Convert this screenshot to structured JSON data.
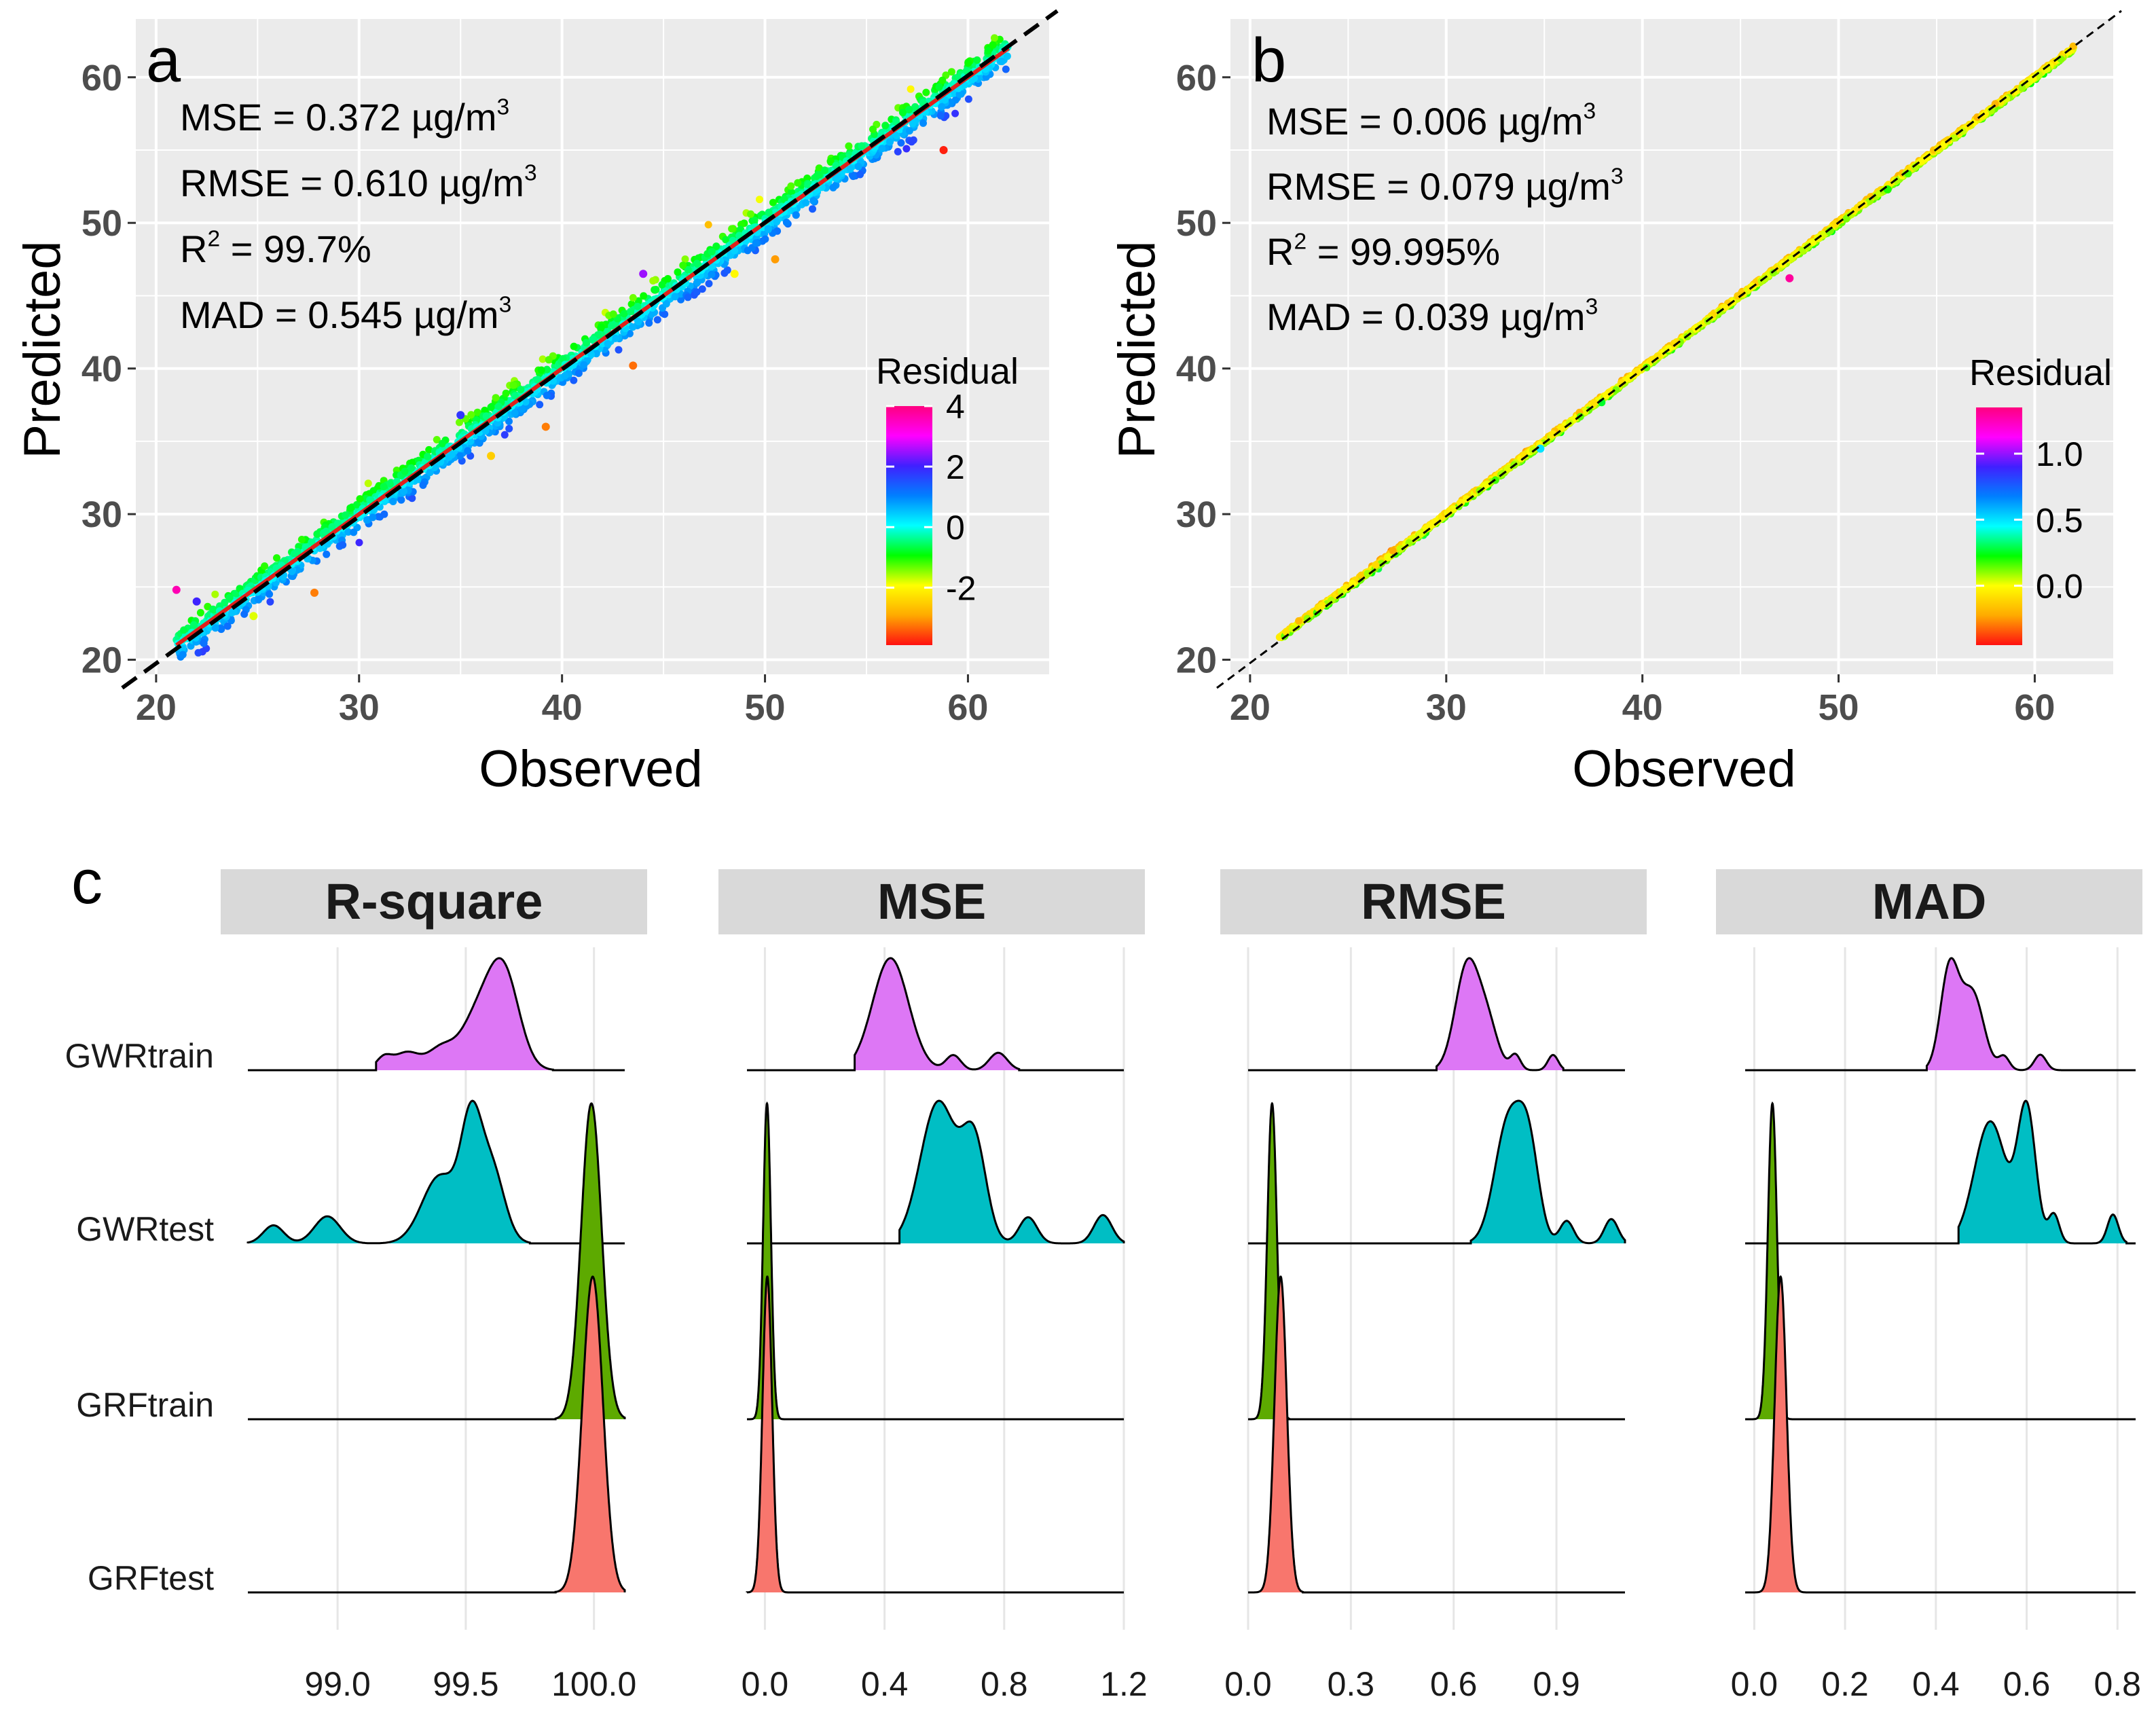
{
  "chart_data": [
    {
      "panel": "a",
      "type": "scatter",
      "xlabel": "Observed",
      "ylabel": "Predicted",
      "xlim": [
        19,
        64
      ],
      "ylim": [
        19,
        64
      ],
      "x_ticks": [
        20,
        30,
        40,
        50,
        60
      ],
      "y_ticks": [
        20,
        30,
        40,
        50,
        60
      ],
      "grid": true,
      "stats": [
        {
          "name": "MSE",
          "text": "MSE = 0.372 µg/m",
          "sup": "3"
        },
        {
          "name": "RMSE",
          "text": "RMSE = 0.610 µg/m",
          "sup": "3"
        },
        {
          "name": "R2",
          "pre": "R",
          "presup": "2",
          "text": " = 99.7%",
          "sup": ""
        },
        {
          "name": "MAD",
          "text": "MAD = 0.545 µg/m",
          "sup": "3"
        }
      ],
      "reference_line": {
        "style": "dashed",
        "color": "#000000",
        "from": [
          19,
          19
        ],
        "to": [
          64,
          64
        ]
      },
      "fit_line": {
        "color": "#e0201a",
        "from": [
          21,
          21
        ],
        "to": [
          62,
          62
        ]
      },
      "point_range": [
        21,
        62
      ],
      "band_residual_sd": 0.6,
      "outliers": [
        {
          "x": 21.0,
          "y": 24.8,
          "r": 3.6
        },
        {
          "x": 27.8,
          "y": 24.6,
          "r": -3.2
        },
        {
          "x": 36.5,
          "y": 34.0,
          "r": -2.5
        },
        {
          "x": 39.2,
          "y": 36.0,
          "r": -3.2
        },
        {
          "x": 43.5,
          "y": 40.2,
          "r": -3.3
        },
        {
          "x": 48.5,
          "y": 46.5,
          "r": -2.0
        },
        {
          "x": 50.5,
          "y": 47.5,
          "r": -3.0
        },
        {
          "x": 58.8,
          "y": 55.0,
          "r": -3.8
        },
        {
          "x": 24.8,
          "y": 23.0,
          "r": -1.8
        },
        {
          "x": 35.0,
          "y": 36.8,
          "r": 1.8
        },
        {
          "x": 44.0,
          "y": 46.5,
          "r": 2.5
        },
        {
          "x": 22.0,
          "y": 24.0,
          "r": 2.0
        }
      ],
      "legend": {
        "title": "Residual",
        "labels": [
          "4",
          "2",
          "0",
          "-2"
        ],
        "label_values": [
          4,
          2,
          0,
          -2
        ],
        "range": [
          -3.9,
          4.0
        ],
        "colors": [
          "#ff1010",
          "#ffaa00",
          "#ffff00",
          "#00ff00",
          "#00ffff",
          "#0080ff",
          "#4020ff",
          "#ff00ff",
          "#ff0080"
        ],
        "placement": "right"
      }
    },
    {
      "panel": "b",
      "type": "scatter",
      "xlabel": "Observed",
      "ylabel": "Predicted",
      "xlim": [
        19,
        64
      ],
      "ylim": [
        19,
        64
      ],
      "x_ticks": [
        20,
        30,
        40,
        50,
        60
      ],
      "y_ticks": [
        20,
        30,
        40,
        50,
        60
      ],
      "grid": true,
      "stats": [
        {
          "name": "MSE",
          "text": "MSE = 0.006 µg/m",
          "sup": "3"
        },
        {
          "name": "RMSE",
          "text": "RMSE = 0.079 µg/m",
          "sup": "3"
        },
        {
          "name": "R2",
          "pre": "R",
          "presup": "2",
          "text": " = 99.995%",
          "sup": ""
        },
        {
          "name": "MAD",
          "text": "MAD = 0.039 µg/m",
          "sup": "3"
        }
      ],
      "reference_line": {
        "style": "dashed",
        "color": "#000000",
        "from": [
          19,
          19
        ],
        "to": [
          64,
          64
        ]
      },
      "point_range": [
        21.5,
        62
      ],
      "band_residual_sd": 0.08,
      "outliers": [
        {
          "x": 47.5,
          "y": 46.2,
          "r": 1.3
        },
        {
          "x": 34.8,
          "y": 34.5,
          "r": 0.5
        },
        {
          "x": 52.5,
          "y": 52.3,
          "r": 0.2
        }
      ],
      "legend": {
        "title": "Residual",
        "labels": [
          "1.0",
          "0.5",
          "0.0"
        ],
        "label_values": [
          1.0,
          0.5,
          0.0
        ],
        "range": [
          -0.45,
          1.35
        ],
        "colors": [
          "#ff1010",
          "#ffaa00",
          "#ffff00",
          "#00ff00",
          "#00ffff",
          "#0080ff",
          "#4020ff",
          "#ff00ff",
          "#ff0080"
        ],
        "placement": "right"
      }
    },
    {
      "panel": "c",
      "type": "ridgeline_density",
      "categories": [
        "GWRtrain",
        "GWRtest",
        "GRFtrain",
        "GRFtest"
      ],
      "category_colors": {
        "GWRtrain": "#dd77f5",
        "GWRtest": "#00bec4",
        "GRFtrain": "#5daa00",
        "GRFtest": "#f8766d"
      },
      "facets": [
        {
          "title": "R-square",
          "xlim": [
            98.65,
            100.12
          ],
          "ticks": [
            99.0,
            99.5,
            100.0
          ],
          "tick_labels": [
            "99.0",
            "99.5",
            "100.0"
          ],
          "series": {
            "GWRtrain": {
              "range": [
                99.15,
                99.84
              ],
              "peaks": [
                [
                  99.18,
                  0.03,
                  0.12
                ],
                [
                  99.27,
                  0.05,
                  0.18
                ],
                [
                  99.4,
                  0.05,
                  0.2
                ],
                [
                  99.55,
                  0.07,
                  0.55
                ],
                [
                  99.65,
                  0.06,
                  0.9
                ]
              ]
            },
            "GWRtest": {
              "range": [
                98.65,
                99.75
              ],
              "peaks": [
                [
                  98.75,
                  0.04,
                  0.12
                ],
                [
                  98.96,
                  0.05,
                  0.18
                ],
                [
                  99.4,
                  0.07,
                  0.45
                ],
                [
                  99.52,
                  0.04,
                  0.7
                ],
                [
                  99.6,
                  0.05,
                  0.5
                ]
              ]
            },
            "GRFtrain": {
              "range": [
                99.85,
                100.12
              ],
              "peaks": [
                [
                  99.99,
                  0.04,
                  1.0
                ]
              ]
            },
            "GRFtest": {
              "range": [
                99.85,
                100.12
              ],
              "peaks": [
                [
                  99.995,
                  0.04,
                  1.0
                ]
              ]
            }
          }
        },
        {
          "title": "MSE",
          "xlim": [
            -0.06,
            1.2
          ],
          "ticks": [
            0.0,
            0.4,
            0.8,
            1.2
          ],
          "tick_labels": [
            "0.0",
            "0.4",
            "0.8",
            "1.2"
          ],
          "series": {
            "GWRtrain": {
              "range": [
                0.3,
                0.85
              ],
              "peaks": [
                [
                  0.42,
                  0.06,
                  0.9
                ],
                [
                  0.63,
                  0.025,
                  0.12
                ],
                [
                  0.78,
                  0.03,
                  0.14
                ]
              ]
            },
            "GWRtest": {
              "range": [
                0.45,
                1.2
              ],
              "peaks": [
                [
                  0.58,
                  0.06,
                  0.65
                ],
                [
                  0.7,
                  0.04,
                  0.45
                ],
                [
                  0.88,
                  0.03,
                  0.12
                ],
                [
                  1.13,
                  0.03,
                  0.13
                ]
              ]
            },
            "GRFtrain": {
              "range": [
                -0.06,
                0.08
              ],
              "peaks": [
                [
                  0.007,
                  0.013,
                  1.0
                ]
              ]
            },
            "GRFtest": {
              "range": [
                -0.06,
                0.08
              ],
              "peaks": [
                [
                  0.008,
                  0.016,
                  1.0
                ]
              ]
            }
          }
        },
        {
          "title": "RMSE",
          "xlim": [
            0.0,
            1.1
          ],
          "ticks": [
            0.0,
            0.3,
            0.6,
            0.9
          ],
          "tick_labels": [
            "0.0",
            "0.3",
            "0.6",
            "0.9"
          ],
          "series": {
            "GWRtrain": {
              "range": [
                0.55,
                0.92
              ],
              "peaks": [
                [
                  0.64,
                  0.035,
                  0.9
                ],
                [
                  0.7,
                  0.03,
                  0.35
                ],
                [
                  0.78,
                  0.015,
                  0.13
                ],
                [
                  0.89,
                  0.015,
                  0.13
                ]
              ]
            },
            "GWRtest": {
              "range": [
                0.65,
                1.1
              ],
              "peaks": [
                [
                  0.76,
                  0.04,
                  0.65
                ],
                [
                  0.82,
                  0.03,
                  0.45
                ],
                [
                  0.93,
                  0.02,
                  0.12
                ],
                [
                  1.06,
                  0.02,
                  0.13
                ]
              ]
            },
            "GRFtrain": {
              "range": [
                0.0,
                0.12
              ],
              "peaks": [
                [
                  0.07,
                  0.014,
                  1.0
                ]
              ]
            },
            "GRFtest": {
              "range": [
                0.0,
                0.16
              ],
              "peaks": [
                [
                  0.095,
                  0.018,
                  1.0
                ]
              ]
            }
          }
        },
        {
          "title": "MAD",
          "xlim": [
            -0.02,
            0.84
          ],
          "ticks": [
            0.0,
            0.2,
            0.4,
            0.6,
            0.8
          ],
          "tick_labels": [
            "0.0",
            "0.2",
            "0.4",
            "0.6",
            "0.8"
          ],
          "series": {
            "GWRtrain": {
              "range": [
                0.38,
                0.68
              ],
              "peaks": [
                [
                  0.43,
                  0.02,
                  0.9
                ],
                [
                  0.48,
                  0.025,
                  0.7
                ],
                [
                  0.55,
                  0.012,
                  0.12
                ],
                [
                  0.63,
                  0.013,
                  0.14
                ]
              ]
            },
            "GWRtest": {
              "range": [
                0.45,
                0.82
              ],
              "peaks": [
                [
                  0.52,
                  0.035,
                  0.55
                ],
                [
                  0.6,
                  0.02,
                  0.6
                ],
                [
                  0.66,
                  0.012,
                  0.13
                ],
                [
                  0.79,
                  0.012,
                  0.13
                ]
              ]
            },
            "GRFtrain": {
              "range": [
                -0.02,
                0.1
              ],
              "peaks": [
                [
                  0.04,
                  0.01,
                  1.0
                ]
              ]
            },
            "GRFtest": {
              "range": [
                -0.02,
                0.13
              ],
              "peaks": [
                [
                  0.058,
                  0.013,
                  1.0
                ]
              ]
            }
          }
        }
      ]
    }
  ]
}
